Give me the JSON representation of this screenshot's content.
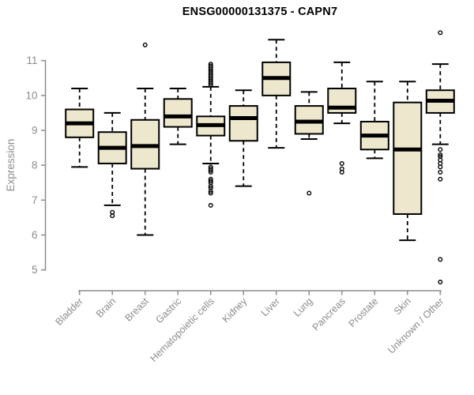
{
  "chart_data": {
    "type": "boxplot",
    "title": "ENSG00000131375 - CAPN7",
    "ylabel": "Expression",
    "xlabel": "",
    "ylim": [
      4.5,
      11.9
    ],
    "yticks": [
      5,
      6,
      7,
      8,
      9,
      10,
      11
    ],
    "grid": false,
    "legend": null,
    "box_fill": "#EDE8CD",
    "box_stroke": "#000000",
    "axis_color": "#8C8C8C",
    "categories": [
      "Bladder",
      "Brain",
      "Breast",
      "Gastric",
      "Hematopoietic cells",
      "Kidney",
      "Liver",
      "Lung",
      "Pancreas",
      "Prostate",
      "Skin",
      "Unknown / Other"
    ],
    "series": [
      {
        "label": "Bladder",
        "whisker_low": 7.95,
        "q1": 8.8,
        "median": 9.2,
        "q3": 9.6,
        "whisker_high": 10.2,
        "outliers": []
      },
      {
        "label": "Brain",
        "whisker_low": 6.85,
        "q1": 8.05,
        "median": 8.5,
        "q3": 8.95,
        "whisker_high": 9.5,
        "outliers": [
          6.65,
          6.55
        ]
      },
      {
        "label": "Breast",
        "whisker_low": 6.0,
        "q1": 7.9,
        "median": 8.55,
        "q3": 9.3,
        "whisker_high": 10.2,
        "outliers": [
          11.45
        ]
      },
      {
        "label": "Gastric",
        "whisker_low": 8.6,
        "q1": 9.1,
        "median": 9.4,
        "q3": 9.9,
        "whisker_high": 10.2,
        "outliers": []
      },
      {
        "label": "Hematopoietic cells",
        "whisker_low": 8.05,
        "q1": 8.85,
        "median": 9.15,
        "q3": 9.4,
        "whisker_high": 10.25,
        "outliers": [
          10.9,
          10.85,
          10.8,
          10.75,
          10.7,
          10.65,
          10.6,
          10.55,
          10.5,
          10.45,
          10.4,
          10.35,
          10.3,
          7.95,
          7.9,
          7.85,
          7.8,
          7.6,
          7.55,
          7.5,
          7.4,
          7.35,
          7.25,
          7.2,
          6.85
        ]
      },
      {
        "label": "Kidney",
        "whisker_low": 7.4,
        "q1": 8.7,
        "median": 9.35,
        "q3": 9.7,
        "whisker_high": 10.15,
        "outliers": []
      },
      {
        "label": "Liver",
        "whisker_low": 8.5,
        "q1": 10.0,
        "median": 10.5,
        "q3": 10.95,
        "whisker_high": 11.6,
        "outliers": []
      },
      {
        "label": "Lung",
        "whisker_low": 8.75,
        "q1": 8.9,
        "median": 9.25,
        "q3": 9.7,
        "whisker_high": 10.1,
        "outliers": [
          7.2
        ]
      },
      {
        "label": "Pancreas",
        "whisker_low": 9.2,
        "q1": 9.5,
        "median": 9.65,
        "q3": 10.2,
        "whisker_high": 10.95,
        "outliers": [
          8.05,
          7.9,
          7.8
        ]
      },
      {
        "label": "Prostate",
        "whisker_low": 8.2,
        "q1": 8.45,
        "median": 8.85,
        "q3": 9.25,
        "whisker_high": 10.4,
        "outliers": []
      },
      {
        "label": "Skin",
        "whisker_low": 5.85,
        "q1": 6.6,
        "median": 8.45,
        "q3": 9.8,
        "whisker_high": 10.4,
        "outliers": []
      },
      {
        "label": "Unknown / Other",
        "whisker_low": 8.6,
        "q1": 9.5,
        "median": 9.85,
        "q3": 10.15,
        "whisker_high": 10.9,
        "outliers": [
          11.8,
          8.45,
          8.3,
          8.25,
          8.15,
          8.05,
          7.95,
          7.8,
          7.6,
          5.3,
          4.65
        ]
      }
    ]
  }
}
